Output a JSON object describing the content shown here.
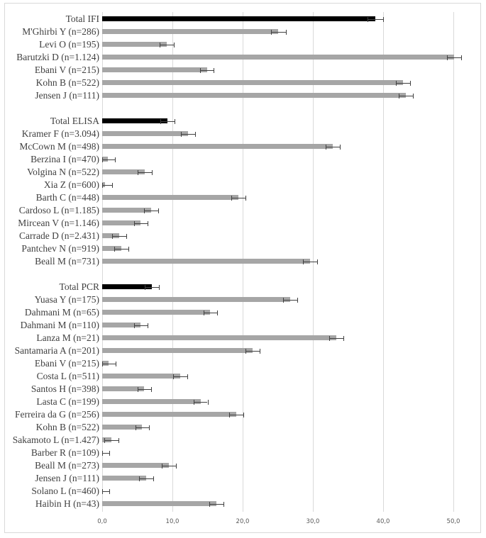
{
  "chart_data": {
    "type": "bar",
    "orientation": "horizontal",
    "title": "",
    "xlabel": "",
    "ylabel": "",
    "xlim": [
      0,
      50
    ],
    "xticks": [
      "0,0",
      "10,0",
      "20,0",
      "30,0",
      "40,0",
      "50,0"
    ],
    "grid": true,
    "legend": null,
    "colors": {
      "total": "#000000",
      "study": "#a6a6a6",
      "error": "#404040",
      "grid": "#d9d9d9"
    },
    "groups": [
      {
        "name": "IFI",
        "rows": [
          {
            "label": "Total IFI",
            "value": 38.9,
            "err": 1.1,
            "total": true
          },
          {
            "label": "M'Ghirbi Y (n=286)",
            "value": 25.1,
            "err": 1.1
          },
          {
            "label": "Levi O (n=195)",
            "value": 9.2,
            "err": 1.0
          },
          {
            "label": "Barutzki D (n=1.124)",
            "value": 50.1,
            "err": 1.0
          },
          {
            "label": "Ebani V (n=215)",
            "value": 14.9,
            "err": 1.0
          },
          {
            "label": "Kohn B (n=522)",
            "value": 42.8,
            "err": 1.0
          },
          {
            "label": "Jensen J (n=111)",
            "value": 43.2,
            "err": 1.0
          }
        ]
      },
      {
        "name": "ELISA",
        "rows": [
          {
            "label": "Total ELISA",
            "value": 9.3,
            "err": 1.0,
            "total": true
          },
          {
            "label": "Kramer F (n=3.094)",
            "value": 12.2,
            "err": 1.0
          },
          {
            "label": "McCown M (n=498)",
            "value": 32.8,
            "err": 1.0
          },
          {
            "label": "Berzina I (n=470)",
            "value": 0.8,
            "err": 1.0
          },
          {
            "label": "Volgina N (n=522)",
            "value": 6.1,
            "err": 1.0
          },
          {
            "label": "Xia Z (n=600)",
            "value": 0.4,
            "err": 1.0
          },
          {
            "label": "Barth C (n=448)",
            "value": 19.4,
            "err": 1.0
          },
          {
            "label": "Cardoso L (n=1.185)",
            "value": 7.0,
            "err": 1.0
          },
          {
            "label": "Mircean V (n=1.146)",
            "value": 5.5,
            "err": 1.0
          },
          {
            "label": "Carrade D (n=2.431)",
            "value": 2.4,
            "err": 1.0
          },
          {
            "label": "Pantchev N (n=919)",
            "value": 2.7,
            "err": 1.0
          },
          {
            "label": "Beall M (n=731)",
            "value": 29.6,
            "err": 1.0
          }
        ]
      },
      {
        "name": "PCR",
        "rows": [
          {
            "label": "Total PCR",
            "value": 7.1,
            "err": 1.0,
            "total": true
          },
          {
            "label": "Yuasa Y (n=175)",
            "value": 26.8,
            "err": 1.0
          },
          {
            "label": "Dahmani M (n=65)",
            "value": 15.4,
            "err": 1.0
          },
          {
            "label": "Dahmani M (n=110)",
            "value": 5.5,
            "err": 1.0
          },
          {
            "label": "Lanza M (n=21)",
            "value": 33.3,
            "err": 1.0
          },
          {
            "label": "Santamaria A (n=201)",
            "value": 21.4,
            "err": 1.0
          },
          {
            "label": "Ebani V (n=215)",
            "value": 0.9,
            "err": 1.0
          },
          {
            "label": "Costa L (n=511)",
            "value": 11.1,
            "err": 1.0
          },
          {
            "label": "Santos H (n=398)",
            "value": 6.0,
            "err": 1.0
          },
          {
            "label": "Lasta C (n=199)",
            "value": 14.0,
            "err": 1.0
          },
          {
            "label": "Ferreira da G (n=256)",
            "value": 19.1,
            "err": 1.0
          },
          {
            "label": "Kohn B (n=522)",
            "value": 5.7,
            "err": 1.0
          },
          {
            "label": "Sakamoto L (n=1.427)",
            "value": 1.3,
            "err": 1.0
          },
          {
            "label": "Barber R (n=109)",
            "value": 0.0,
            "err": 1.0
          },
          {
            "label": "Beall M (n=273)",
            "value": 9.5,
            "err": 1.0
          },
          {
            "label": "Jensen J (n=111)",
            "value": 6.3,
            "err": 1.0
          },
          {
            "label": "Solano L (n=460)",
            "value": 0.0,
            "err": 1.0
          },
          {
            "label": "Haibin H (n=43)",
            "value": 16.3,
            "err": 1.0
          }
        ]
      }
    ]
  }
}
